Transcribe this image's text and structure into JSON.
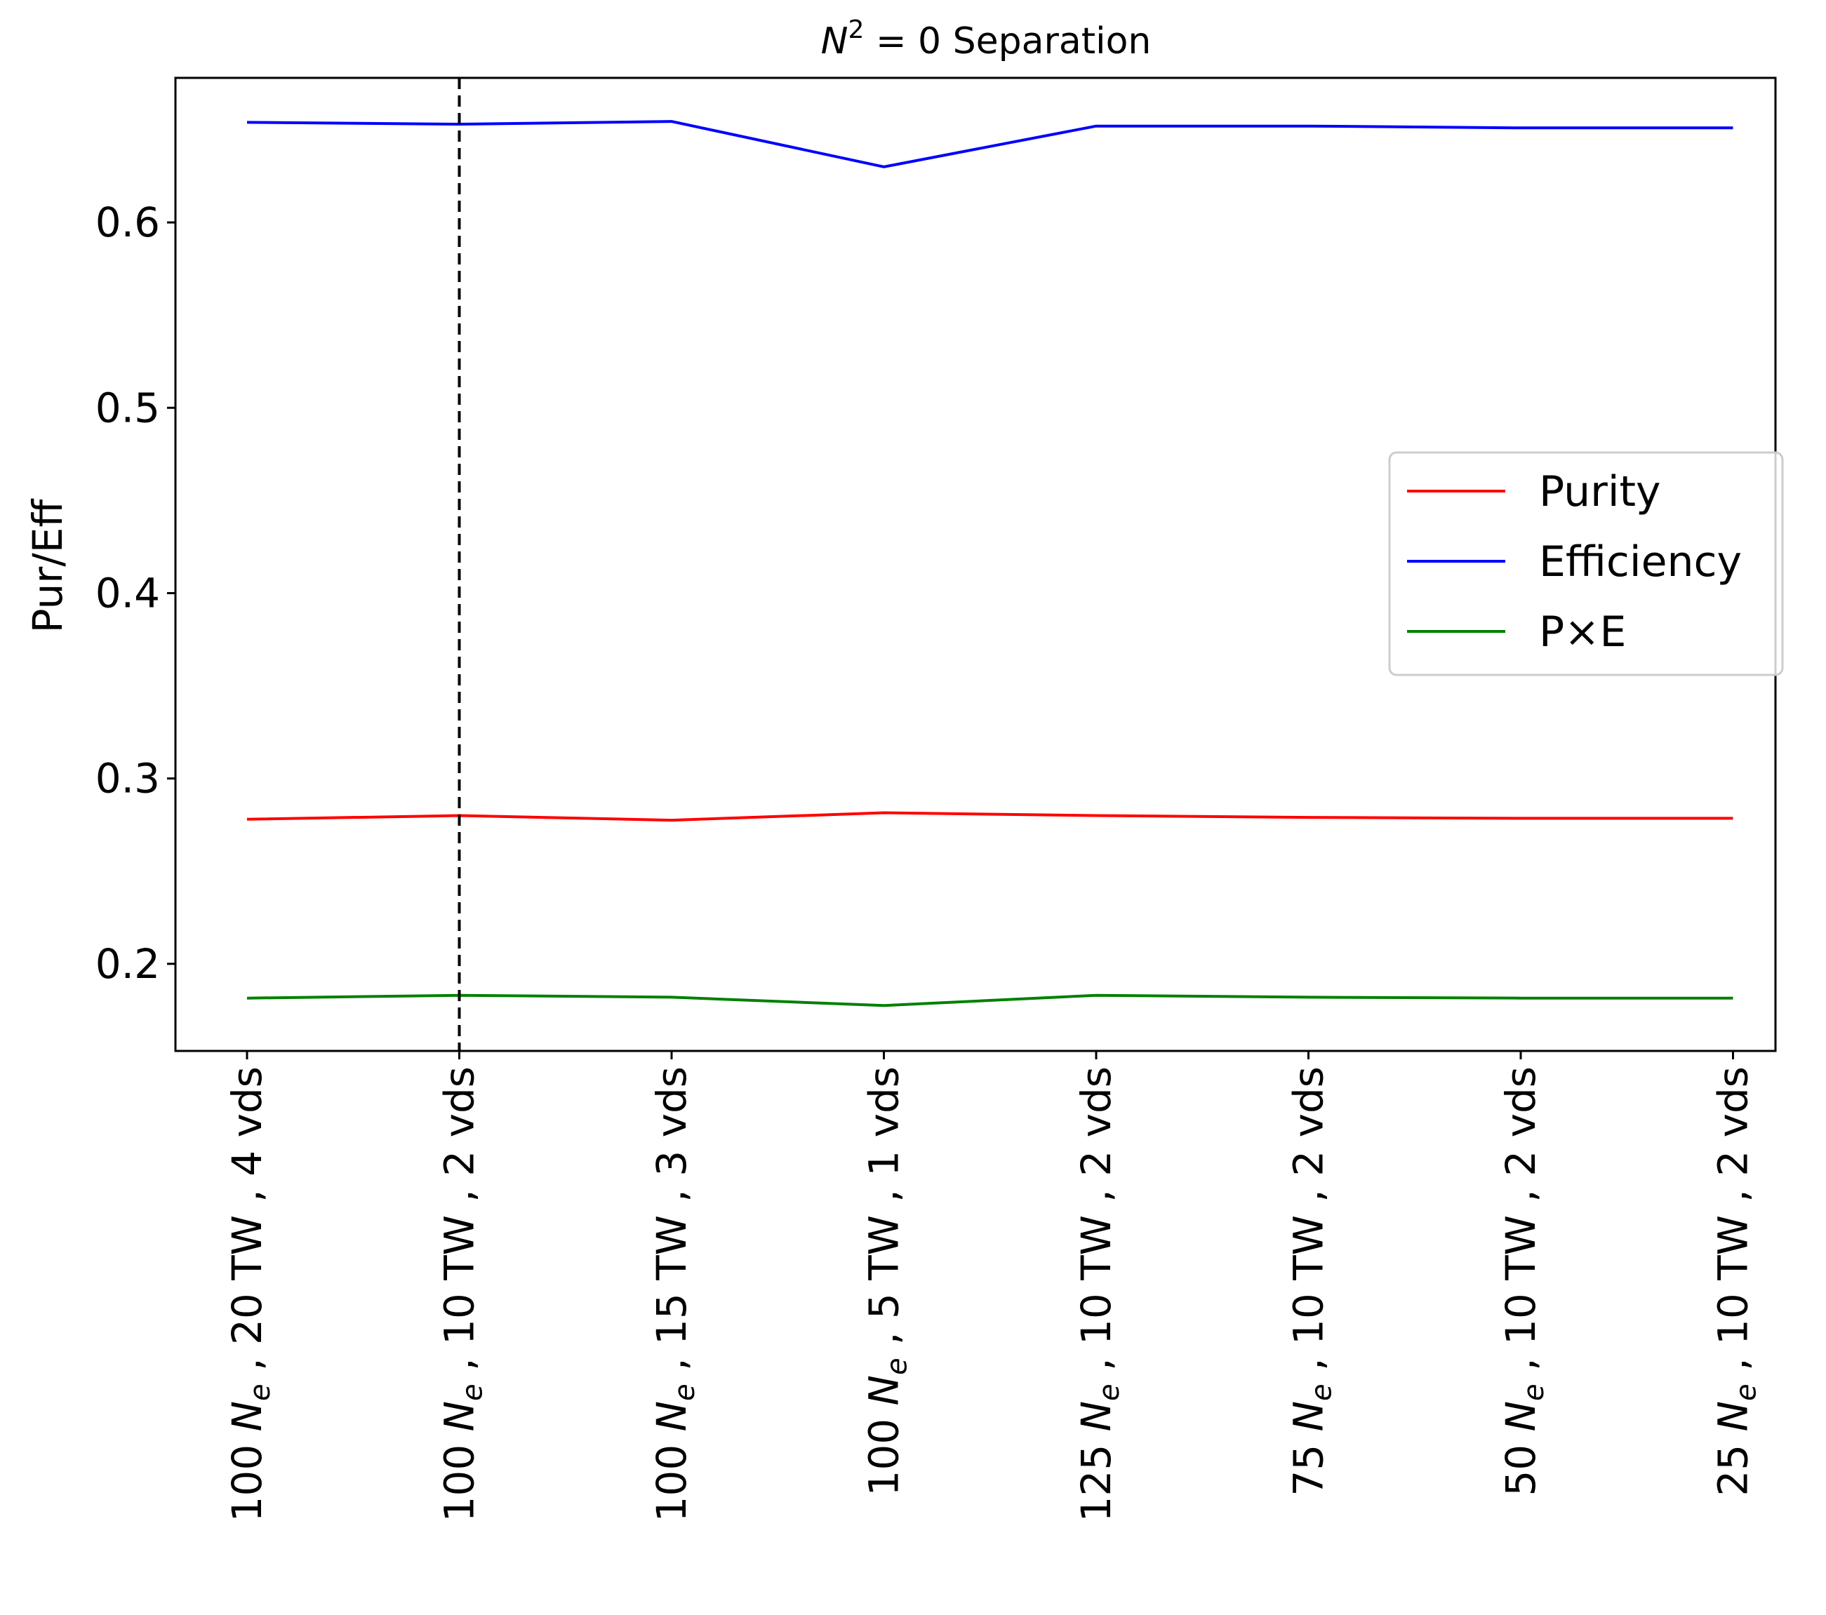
{
  "chart_data": {
    "type": "line",
    "title_base": "N",
    "title_sup": "2",
    "title_rest": " = 0 Separation",
    "xlabel": "",
    "ylabel": "Pur/Eff",
    "ylim": [
      0.153,
      0.678
    ],
    "yticks": [
      0.2,
      0.3,
      0.4,
      0.5,
      0.6
    ],
    "ytick_labels": [
      "0.2",
      "0.3",
      "0.4",
      "0.5",
      "0.6"
    ],
    "categories": [
      {
        "pre": "100 ",
        "ne": "N",
        "sub": "e",
        "post": " , 20 TW , 4 vds"
      },
      {
        "pre": "100 ",
        "ne": "N",
        "sub": "e",
        "post": " , 10 TW , 2 vds"
      },
      {
        "pre": "100 ",
        "ne": "N",
        "sub": "e",
        "post": " , 15 TW , 3 vds"
      },
      {
        "pre": "100 ",
        "ne": "N",
        "sub": "e",
        "post": " , 5 TW , 1 vds"
      },
      {
        "pre": "125 ",
        "ne": "N",
        "sub": "e",
        "post": " , 10 TW , 2 vds"
      },
      {
        "pre": "75 ",
        "ne": "N",
        "sub": "e",
        "post": " , 10 TW , 2 vds"
      },
      {
        "pre": "50 ",
        "ne": "N",
        "sub": "e",
        "post": " , 10 TW , 2 vds"
      },
      {
        "pre": "25 ",
        "ne": "N",
        "sub": "e",
        "post": " , 10 TW , 2 vds"
      }
    ],
    "series": [
      {
        "name": "Purity",
        "color": "#ff0000",
        "values": [
          0.278,
          0.28,
          0.2775,
          0.2815,
          0.28,
          0.279,
          0.2785,
          0.2785
        ]
      },
      {
        "name": "Efficiency",
        "color": "#0000ff",
        "values": [
          0.654,
          0.653,
          0.6545,
          0.63,
          0.652,
          0.652,
          0.651,
          0.651
        ]
      },
      {
        "name": "P×E",
        "color": "#008000",
        "values": [
          0.1815,
          0.183,
          0.182,
          0.1775,
          0.183,
          0.182,
          0.1815,
          0.1815
        ]
      }
    ],
    "vline": {
      "category_index": 1,
      "style": "dashed",
      "color": "#000000"
    },
    "legend_position": "center-right",
    "grid": false
  }
}
